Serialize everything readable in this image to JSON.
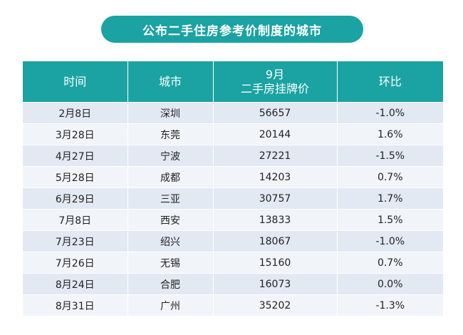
{
  "title": "公布二手住房参考价制度的城市",
  "chart_data": {
    "type": "table",
    "columns": [
      "时间",
      "城市",
      "9月\n二手房挂牌价",
      "环比"
    ],
    "rows": [
      [
        "2月8日",
        "深圳",
        "56657",
        "-1.0%"
      ],
      [
        "3月28日",
        "东莞",
        "20144",
        "1.6%"
      ],
      [
        "4月27日",
        "宁波",
        "27221",
        "-1.5%"
      ],
      [
        "5月28日",
        "成都",
        "14203",
        "0.7%"
      ],
      [
        "6月29日",
        "三亚",
        "30757",
        "1.7%"
      ],
      [
        "7月8日",
        "西安",
        "13833",
        "1.5%"
      ],
      [
        "7月23日",
        "绍兴",
        "18067",
        "-1.0%"
      ],
      [
        "7月26日",
        "无锡",
        "15160",
        "0.7%"
      ],
      [
        "8月24日",
        "合肥",
        "16073",
        "0.0%"
      ],
      [
        "8月31日",
        "广州",
        "35202",
        "-1.3%"
      ]
    ]
  }
}
